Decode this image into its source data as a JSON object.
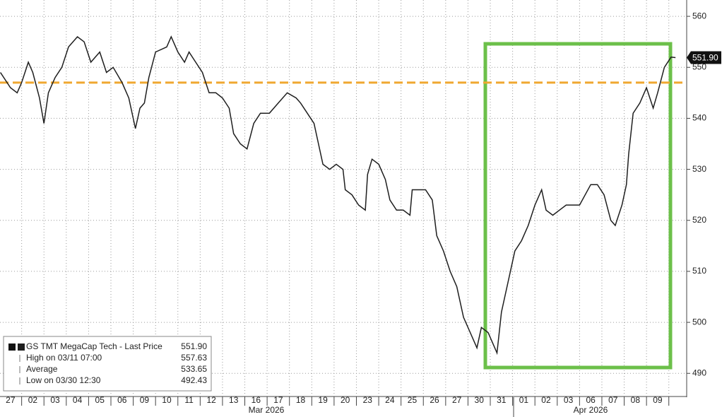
{
  "chart_data": {
    "type": "line",
    "xticks": [
      {
        "value": 0,
        "label": "27"
      },
      {
        "value": 1,
        "label": "02"
      },
      {
        "value": 2,
        "label": "03"
      },
      {
        "value": 3,
        "label": "04"
      },
      {
        "value": 4,
        "label": "05"
      },
      {
        "value": 5,
        "label": "06"
      },
      {
        "value": 6,
        "label": "09"
      },
      {
        "value": 7,
        "label": "10"
      },
      {
        "value": 8,
        "label": "11"
      },
      {
        "value": 9,
        "label": "12"
      },
      {
        "value": 10,
        "label": "13"
      },
      {
        "value": 11,
        "label": "16"
      },
      {
        "value": 12,
        "label": "17"
      },
      {
        "value": 13,
        "label": "18"
      },
      {
        "value": 14,
        "label": "19"
      },
      {
        "value": 15,
        "label": "20"
      },
      {
        "value": 16,
        "label": "23"
      },
      {
        "value": 17,
        "label": "24"
      },
      {
        "value": 18,
        "label": "25"
      },
      {
        "value": 19,
        "label": "26"
      },
      {
        "value": 20,
        "label": "27"
      },
      {
        "value": 21,
        "label": "30"
      },
      {
        "value": 22,
        "label": "31"
      },
      {
        "value": 23,
        "label": "01"
      },
      {
        "value": 24,
        "label": "02"
      },
      {
        "value": 25,
        "label": "03"
      },
      {
        "value": 26,
        "label": "06"
      },
      {
        "value": 27,
        "label": "07"
      },
      {
        "value": 28,
        "label": "08"
      },
      {
        "value": 29,
        "label": "09"
      }
    ],
    "months": [
      "Mar 2026",
      "Apr 2026"
    ],
    "xlim": [
      -0.47,
      30.3
    ],
    "ylim": [
      485.6,
      563.2
    ],
    "yticks": [
      490,
      500,
      510,
      520,
      530,
      540,
      550,
      560
    ],
    "grid": true,
    "series": [
      {
        "name": "GS TMT MegaCap Tech - Last Price",
        "color": "#1e1e1e",
        "x": [
          -0.45,
          0,
          0.3,
          0.5,
          0.8,
          1.0,
          1.3,
          1.5,
          1.7,
          2.0,
          2.3,
          2.6,
          3.0,
          3.3,
          3.6,
          4.0,
          4.3,
          4.6,
          5.0,
          5.3,
          5.6,
          5.8,
          6.0,
          6.2,
          6.5,
          7.0,
          7.2,
          7.5,
          7.8,
          8.0,
          8.3,
          8.6,
          8.9,
          9.2,
          9.5,
          9.8,
          10.0,
          10.3,
          10.6,
          10.9,
          11.2,
          11.6,
          12.0,
          12.4,
          12.8,
          13.0,
          13.3,
          13.6,
          13.8,
          14.0,
          14.3,
          14.6,
          14.9,
          15.0,
          15.3,
          15.6,
          15.9,
          16.0,
          16.2,
          16.5,
          16.8,
          17.0,
          17.3,
          17.6,
          17.9,
          18.0,
          18.3,
          18.6,
          18.9,
          19.1,
          19.4,
          19.7,
          20.0,
          20.3,
          20.6,
          20.9,
          21.1,
          21.4,
          21.6,
          21.8,
          22.0,
          22.3,
          22.6,
          22.9,
          23.2,
          23.5,
          23.8,
          24.0,
          24.3,
          24.6,
          24.9,
          25.5,
          26.0,
          26.3,
          26.6,
          26.9,
          27.1,
          27.4,
          27.6,
          27.7,
          27.9,
          28.2,
          28.5,
          28.8,
          29.0,
          29.3,
          29.6,
          29.8
        ],
        "values": [
          549,
          546,
          545,
          547,
          551,
          549,
          544,
          539,
          545,
          548,
          550,
          554,
          556,
          555,
          551,
          553,
          549,
          550,
          547,
          544,
          538,
          542,
          543,
          548,
          553,
          554,
          556,
          553,
          551,
          553,
          551,
          549,
          545,
          545,
          544,
          542,
          537,
          535,
          534,
          539,
          541,
          541,
          543,
          545,
          544,
          543,
          541,
          539,
          535,
          531,
          530,
          531,
          530,
          526,
          525,
          523,
          522,
          529,
          532,
          531,
          528,
          524,
          522,
          522,
          521,
          526,
          526,
          526,
          524,
          517,
          514,
          510,
          507,
          501,
          498,
          495,
          499,
          498,
          496,
          494,
          502,
          508,
          514,
          516,
          519,
          523,
          526,
          522,
          521,
          522,
          523,
          523,
          527,
          527,
          525,
          520,
          519,
          523,
          527,
          533,
          541,
          543,
          546,
          542,
          545,
          550,
          552,
          551.9
        ]
      }
    ],
    "reference_line": {
      "value": 547,
      "color": "#f0a830"
    },
    "last_price_tag": {
      "value": 551.9,
      "label": "551.90"
    },
    "legend": [
      {
        "label": "GS TMT MegaCap Tech - Last Price",
        "value": 551.9,
        "value_label": "551.90"
      },
      {
        "label": "High on 03/11 07:00",
        "value": 557.63
      },
      {
        "label": "Average",
        "value": 533.65
      },
      {
        "label": "Low on 03/30 12:30",
        "value": 492.43
      }
    ]
  }
}
